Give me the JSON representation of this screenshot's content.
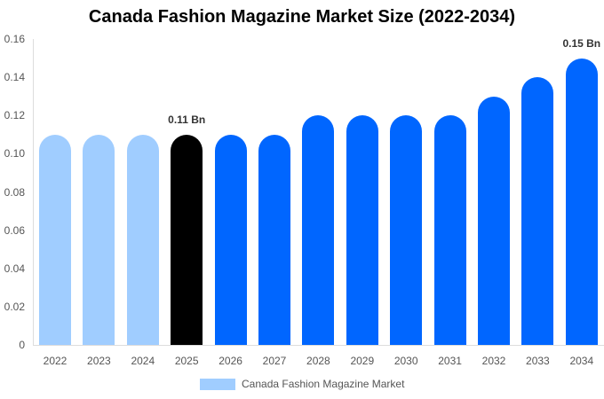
{
  "chart_data": {
    "type": "bar",
    "title": "Canada Fashion Magazine Market Size (2022-2034)",
    "xlabel": "",
    "ylabel": "",
    "ylim": [
      0,
      0.16
    ],
    "yticks": [
      "0",
      "0.02",
      "0.04",
      "0.06",
      "0.08",
      "0.10",
      "0.12",
      "0.14",
      "0.16"
    ],
    "categories": [
      "2022",
      "2023",
      "2024",
      "2025",
      "2026",
      "2027",
      "2028",
      "2029",
      "2030",
      "2031",
      "2032",
      "2033",
      "2034"
    ],
    "series": [
      {
        "name": "Canada Fashion Magazine Market",
        "values": [
          0.11,
          0.11,
          0.11,
          0.11,
          0.11,
          0.11,
          0.12,
          0.12,
          0.12,
          0.12,
          0.13,
          0.14,
          0.15
        ]
      }
    ],
    "bar_colors": [
      "#a0cdff",
      "#a0cdff",
      "#a0cdff",
      "#000000",
      "#0066ff",
      "#0066ff",
      "#0066ff",
      "#0066ff",
      "#0066ff",
      "#0066ff",
      "#0066ff",
      "#0066ff",
      "#0066ff"
    ],
    "annotations": [
      {
        "category": "2025",
        "text": "0.11 Bn"
      },
      {
        "category": "2034",
        "text": "0.15 Bn"
      }
    ],
    "legend": {
      "label": "Canada Fashion Magazine Market",
      "color": "#a0cdff",
      "position": "bottom"
    },
    "grid": false
  }
}
